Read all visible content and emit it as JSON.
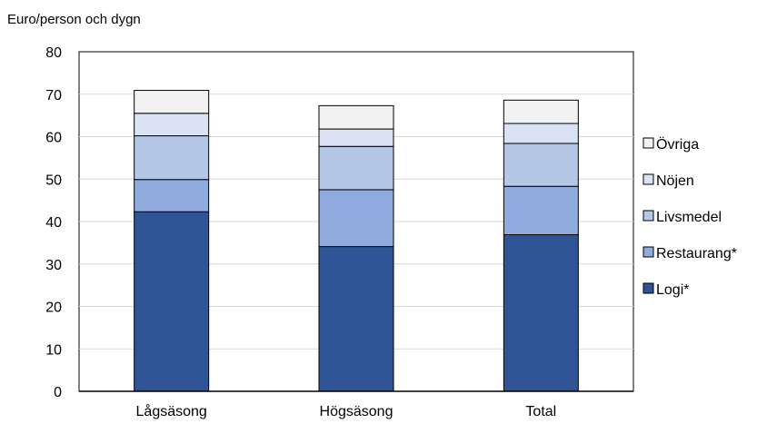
{
  "chart_data": {
    "type": "bar",
    "stacked": true,
    "title": "",
    "xlabel": "",
    "ylabel": "Euro/person och dygn",
    "ylim": [
      0,
      80
    ],
    "yticks": [
      0,
      10,
      20,
      30,
      40,
      50,
      60,
      70,
      80
    ],
    "grid": true,
    "legend_position": "right",
    "categories": [
      "Lågsäsong",
      "Högsäsong",
      "Total"
    ],
    "series": [
      {
        "name": "Logi*",
        "values": [
          42.3,
          34.1,
          36.9
        ],
        "color": "#2f5597"
      },
      {
        "name": "Restaurang*",
        "values": [
          7.6,
          13.4,
          11.4
        ],
        "color": "#8faadc"
      },
      {
        "name": "Livsmedel",
        "values": [
          10.3,
          10.2,
          10.1
        ],
        "color": "#b4c7e7"
      },
      {
        "name": "Nöjen",
        "values": [
          5.3,
          4.1,
          4.7
        ],
        "color": "#dae3f3"
      },
      {
        "name": "Övriga",
        "values": [
          5.4,
          5.5,
          5.5
        ],
        "color": "#f2f2f2"
      }
    ],
    "legend_order": [
      "Övriga",
      "Nöjen",
      "Livsmedel",
      "Restaurang*",
      "Logi*"
    ]
  }
}
